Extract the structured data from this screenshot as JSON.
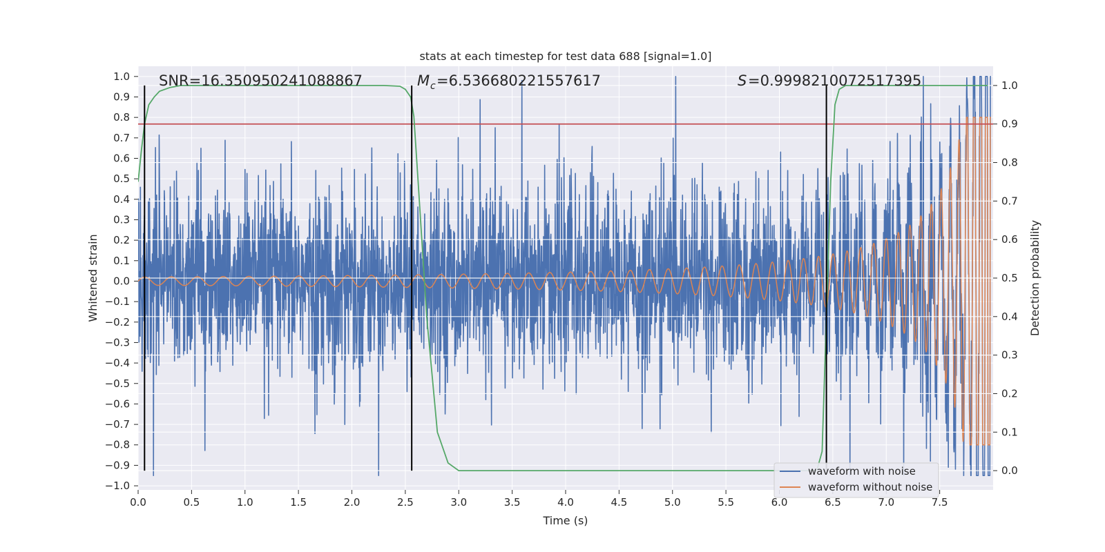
{
  "chart_data": {
    "type": "line",
    "title": "stats at each timestep for test data 688 [signal=1.0]",
    "xlabel": "Time (s)",
    "ylabel_left": "Whitened strain",
    "ylabel_right": "Detection probability",
    "xlim": [
      0.0,
      8.0
    ],
    "ylim_left": [
      -1.02,
      1.05
    ],
    "ylim_right": [
      -0.05,
      1.05
    ],
    "xticks": [
      "0.0",
      "0.5",
      "1.0",
      "1.5",
      "2.0",
      "2.5",
      "3.0",
      "3.5",
      "4.0",
      "4.5",
      "5.0",
      "5.5",
      "6.0",
      "6.5",
      "7.0",
      "7.5"
    ],
    "yticks_left": [
      "1.0",
      "0.9",
      "0.8",
      "0.7",
      "0.6",
      "0.5",
      "0.4",
      "0.3",
      "0.2",
      "0.1",
      "0.0",
      "−0.1",
      "−0.2",
      "−0.3",
      "−0.4",
      "−0.5",
      "−0.6",
      "−0.7",
      "−0.8",
      "−0.9",
      "−1.0"
    ],
    "yticks_right": [
      "1.0",
      "0.9",
      "0.8",
      "0.7",
      "0.6",
      "0.5",
      "0.4",
      "0.3",
      "0.2",
      "0.1",
      "0.0"
    ],
    "grid": true,
    "legend_position": "bottom-right",
    "annotations": {
      "snr": "SNR=16.350950241088867",
      "mc": "=6.536680221557617",
      "s": "=0.9998210072517395"
    },
    "threshold": 0.9,
    "vertical_markers": [
      0.06,
      2.56,
      6.44
    ],
    "series": [
      {
        "name": "waveform with noise",
        "color": "#4c72b0"
      },
      {
        "name": "waveform without noise",
        "color": "#dd8452"
      },
      {
        "color": "#55a868",
        "axis": "right",
        "x": [
          0.0,
          0.03,
          0.06,
          0.1,
          0.15,
          0.2,
          0.3,
          0.4,
          0.5,
          1.0,
          1.5,
          2.0,
          2.3,
          2.45,
          2.5,
          2.55,
          2.58,
          2.62,
          2.7,
          2.8,
          2.9,
          3.0,
          4.0,
          5.0,
          6.0,
          6.35,
          6.4,
          6.44,
          6.48,
          6.52,
          6.56,
          6.62,
          6.7,
          7.0,
          7.5,
          7.95
        ],
        "y": [
          0.75,
          0.83,
          0.9,
          0.95,
          0.97,
          0.985,
          0.995,
          1.0,
          1.0,
          1.0,
          1.0,
          1.0,
          1.0,
          0.998,
          0.99,
          0.97,
          0.92,
          0.75,
          0.4,
          0.1,
          0.02,
          0.0,
          0.0,
          0.0,
          0.0,
          0.0,
          0.05,
          0.4,
          0.75,
          0.95,
          0.99,
          1.0,
          1.0,
          1.0,
          1.0,
          1.0
        ]
      }
    ],
    "colors": {
      "background": "#eaeaf2",
      "grid": "#ffffff",
      "noise": "#4c72b0",
      "clean": "#dd8452",
      "prob": "#55a868",
      "threshold": "#c44e52",
      "marker": "#000000"
    }
  }
}
